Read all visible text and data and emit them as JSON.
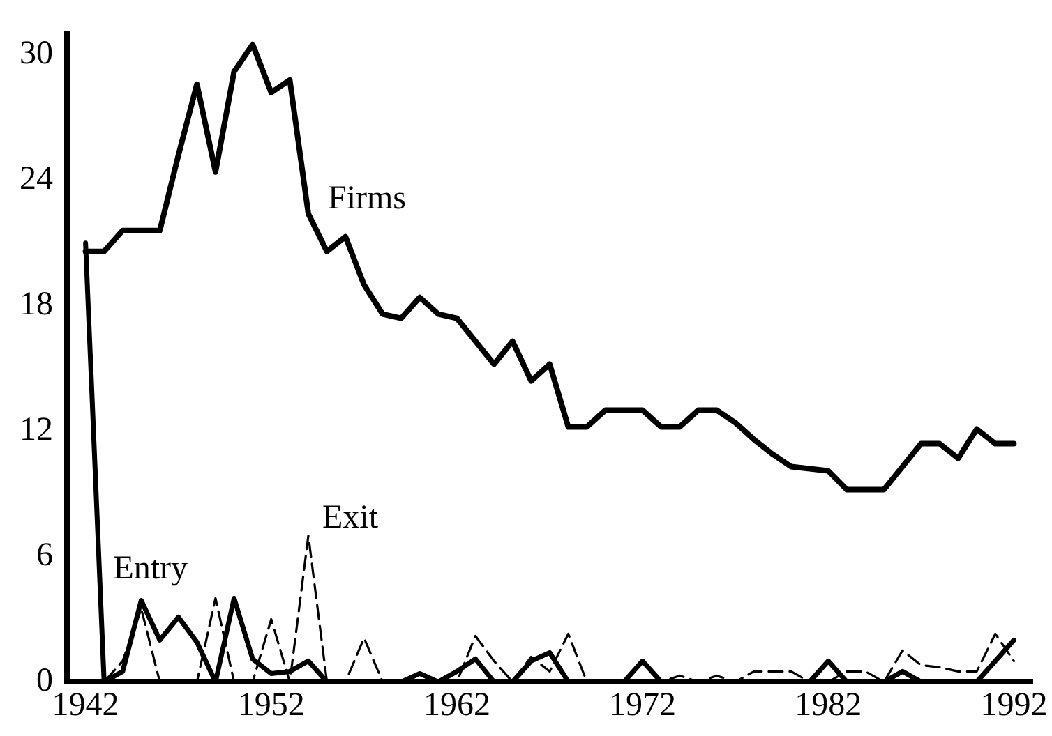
{
  "chart_data": {
    "type": "line",
    "x": [
      1942,
      1943,
      1944,
      1945,
      1946,
      1947,
      1948,
      1949,
      1950,
      1951,
      1952,
      1953,
      1954,
      1955,
      1956,
      1957,
      1958,
      1959,
      1960,
      1961,
      1962,
      1963,
      1964,
      1965,
      1966,
      1967,
      1968,
      1969,
      1970,
      1971,
      1972,
      1973,
      1974,
      1975,
      1976,
      1977,
      1978,
      1979,
      1980,
      1981,
      1982,
      1983,
      1984,
      1985,
      1986,
      1987,
      1988,
      1989,
      1990,
      1991,
      1992
    ],
    "series": [
      {
        "name": "Firms",
        "color": "#000000",
        "line_style": "solid",
        "values": [
          20.6,
          20.6,
          21.6,
          21.6,
          21.6,
          25.2,
          28.6,
          24.4,
          29.2,
          30.5,
          28.2,
          28.8,
          22.4,
          20.6,
          21.3,
          19.0,
          17.6,
          17.4,
          18.4,
          17.6,
          17.4,
          16.3,
          15.2,
          16.3,
          14.4,
          15.2,
          12.2,
          12.2,
          13.0,
          13.0,
          13.0,
          12.2,
          12.2,
          13.0,
          13.0,
          12.4,
          11.6,
          10.9,
          10.3,
          10.2,
          10.1,
          9.2,
          9.2,
          9.2,
          10.3,
          11.4,
          11.4,
          10.7,
          12.1,
          11.4,
          11.4
        ]
      },
      {
        "name": "Entry",
        "color": "#000000",
        "line_style": "solid",
        "values": [
          21,
          0,
          0.5,
          3.9,
          2.0,
          3.1,
          1.9,
          0,
          4.0,
          1.1,
          0.4,
          0.5,
          1.0,
          0,
          0,
          0,
          0,
          0,
          0.4,
          0,
          0.5,
          1.1,
          0,
          0,
          1.0,
          1.4,
          0,
          0,
          0,
          0,
          1.0,
          0,
          0,
          0,
          0,
          0,
          0,
          0,
          0,
          0,
          1.0,
          0,
          0,
          0,
          0.5,
          0,
          0,
          0,
          0,
          1.0,
          2.0
        ]
      },
      {
        "name": "Exit",
        "color": "#000000",
        "line_style": "dashed",
        "values": [
          0,
          0,
          1.0,
          3.5,
          0,
          0,
          0,
          4.0,
          0,
          0,
          3.0,
          0,
          7.0,
          0,
          0,
          2.1,
          0,
          0,
          0,
          0,
          0,
          2.2,
          1.0,
          0,
          1.2,
          0.5,
          2.3,
          0,
          0,
          0,
          0,
          0,
          0.3,
          0,
          0.3,
          0,
          0.5,
          0.5,
          0.5,
          0,
          0,
          0.5,
          0.5,
          0,
          1.5,
          0.8,
          0.7,
          0.5,
          0.5,
          2.3,
          1.0
        ]
      }
    ],
    "xlim": [
      1941,
      1993
    ],
    "xticks": [
      1942,
      1952,
      1962,
      1972,
      1982,
      1992
    ],
    "ylim": [
      0,
      31
    ],
    "yticks": [
      0,
      6,
      12,
      18,
      24,
      30
    ],
    "grid": false,
    "legend": false,
    "marker": "none"
  }
}
